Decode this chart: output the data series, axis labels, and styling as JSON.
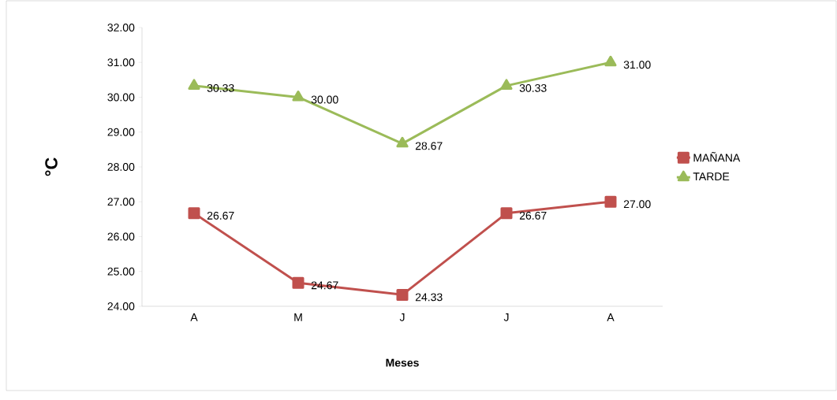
{
  "chart_data": {
    "type": "line",
    "xlabel": "Meses",
    "ylabel": "°C",
    "categories": [
      "A",
      "M",
      "J",
      "J",
      "A"
    ],
    "ylim": [
      24,
      32
    ],
    "yticks": [
      {
        "value": 24,
        "label": "24.00"
      },
      {
        "value": 25,
        "label": "25.00"
      },
      {
        "value": 26,
        "label": "26.00"
      },
      {
        "value": 27,
        "label": "27.00"
      },
      {
        "value": 28,
        "label": "28.00"
      },
      {
        "value": 29,
        "label": "29.00"
      },
      {
        "value": 30,
        "label": "30.00"
      },
      {
        "value": 31,
        "label": "31.00"
      },
      {
        "value": 32,
        "label": "32.00"
      }
    ],
    "legend": "right",
    "series": [
      {
        "name": "MAÑANA",
        "color": "#c0504d",
        "marker": "square",
        "values": [
          26.67,
          24.67,
          24.33,
          26.67,
          27.0
        ],
        "value_labels": [
          "26.67",
          "24.67",
          "24.33",
          "26.67",
          "27.00"
        ]
      },
      {
        "name": "TARDE",
        "color": "#9bbb59",
        "marker": "triangle",
        "values": [
          30.33,
          30.0,
          28.67,
          30.33,
          31.0
        ],
        "value_labels": [
          "30.33",
          "30.00",
          "28.67",
          "30.33",
          "31.00"
        ]
      }
    ]
  }
}
